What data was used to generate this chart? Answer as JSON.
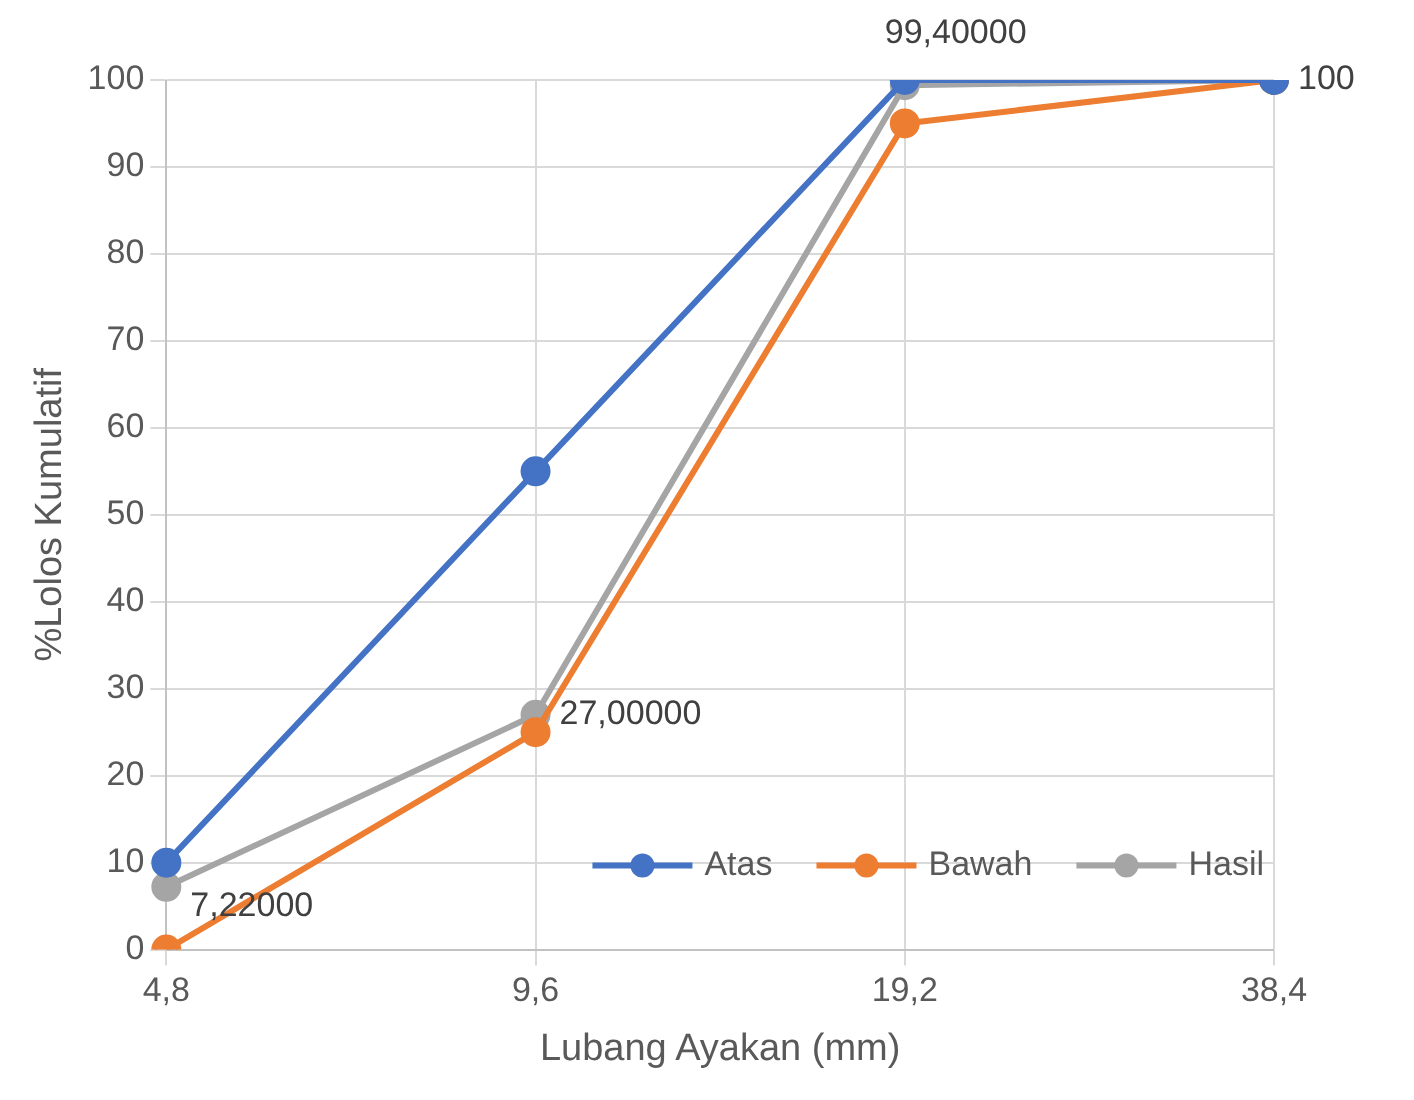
{
  "chart_data": {
    "type": "line",
    "xlabel": "Lubang Ayakan (mm)",
    "ylabel": "%Lolos Kumulatif",
    "categories": [
      "4,8",
      "9,6",
      "19,2",
      "38,4"
    ],
    "series": [
      {
        "name": "Atas",
        "color": "#4472c4",
        "values": [
          10,
          55,
          100,
          100
        ]
      },
      {
        "name": "Bawah",
        "color": "#ed7d31",
        "values": [
          0,
          25,
          95,
          100
        ]
      },
      {
        "name": "Hasil",
        "color": "#a5a5a5",
        "values": [
          7.22,
          27,
          99.4,
          100
        ],
        "value_labels": [
          "7,22000",
          "27,00000",
          "99,40000",
          "100"
        ]
      }
    ],
    "ylim": [
      0,
      100
    ],
    "yticks": [
      0,
      10,
      20,
      30,
      40,
      50,
      60,
      70,
      80,
      90,
      100
    ],
    "grid": true,
    "legend": "bottom right",
    "marker": "circle",
    "line_style": "solid"
  }
}
